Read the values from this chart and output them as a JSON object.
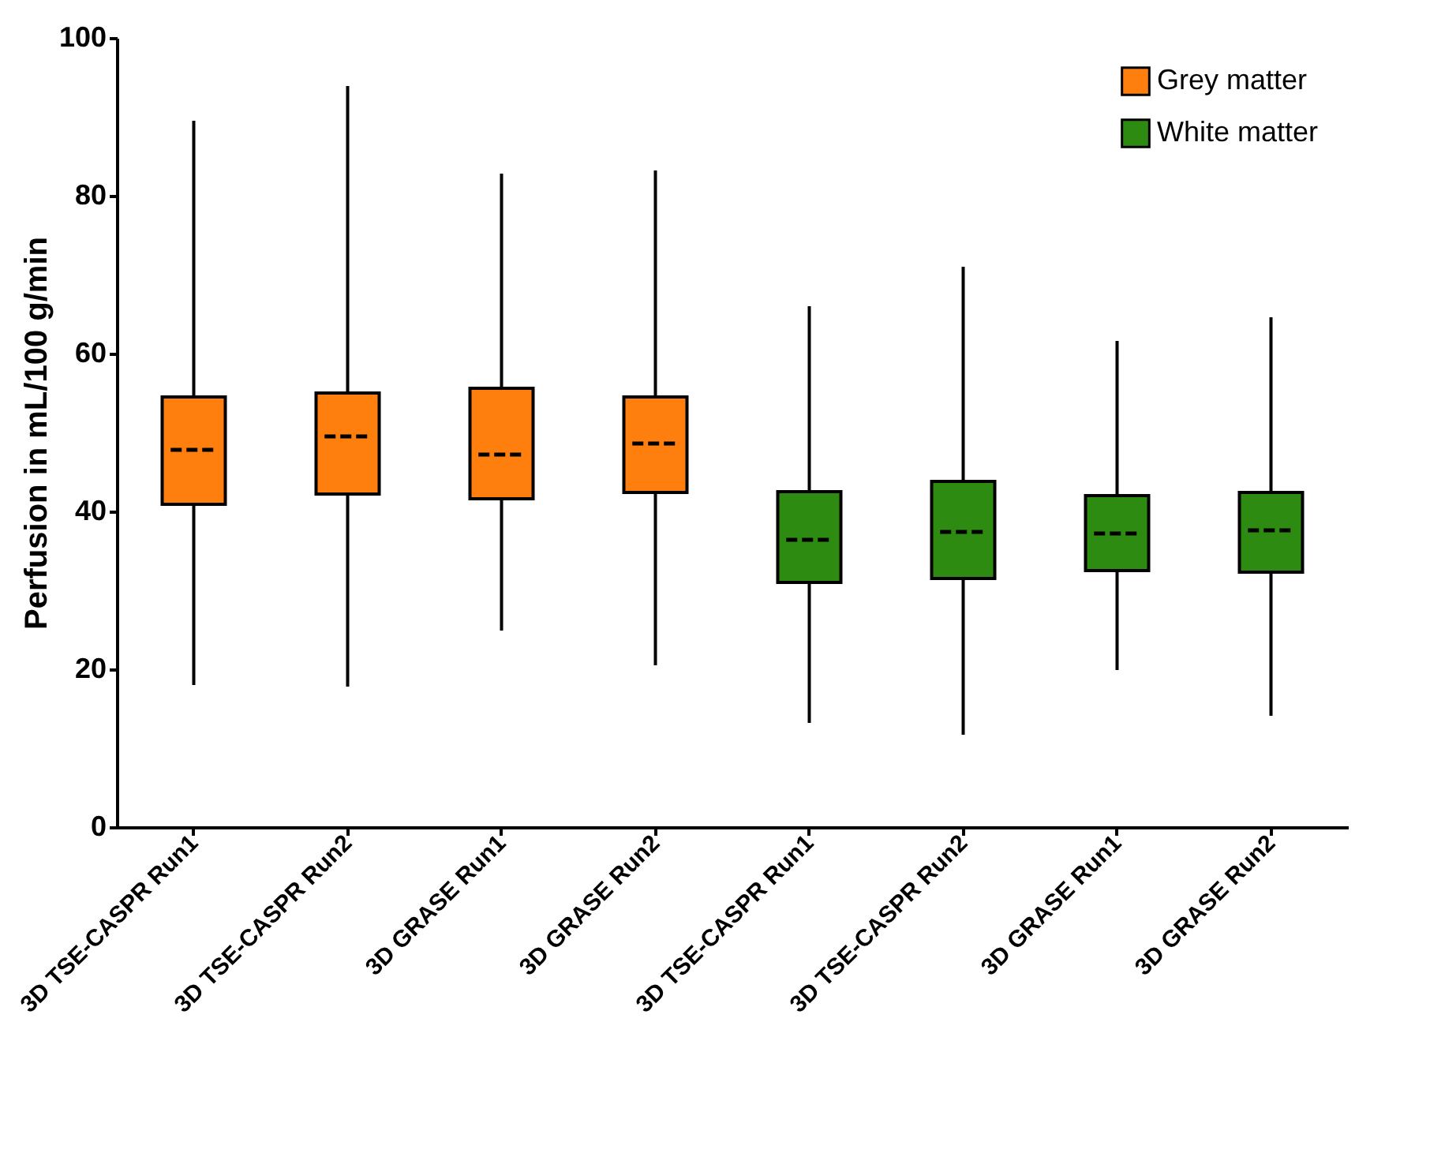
{
  "chart_data": {
    "type": "box",
    "ylabel": "Perfusion in mL/100 g/min",
    "categories": [
      "3D TSE-CASPR Run1",
      "3D TSE-CASPR Run2",
      "3D GRASE Run1",
      "3D GRASE Run2",
      "3D TSE-CASPR Run1",
      "3D TSE-CASPR Run2",
      "3D GRASE Run1",
      "3D GRASE Run2"
    ],
    "ylim": [
      0,
      100
    ],
    "yticks": [
      0,
      20,
      40,
      60,
      80,
      100
    ],
    "legend": "top right",
    "series": [
      {
        "name": "Grey matter",
        "color": "#ff7f0e",
        "boxes": [
          {
            "low": 18,
            "q1": 40.9,
            "median": 47.8,
            "q3": 54.5,
            "high": 89.5
          },
          {
            "low": 17.8,
            "q1": 42.2,
            "median": 49.5,
            "q3": 55,
            "high": 93.9
          },
          {
            "low": 24.9,
            "q1": 41.6,
            "median": 47.2,
            "q3": 55.6,
            "high": 82.8
          },
          {
            "low": 20.5,
            "q1": 42.4,
            "median": 48.6,
            "q3": 54.5,
            "high": 83.2
          },
          null,
          null,
          null,
          null
        ]
      },
      {
        "name": "White matter",
        "color": "#2e8b12",
        "boxes": [
          null,
          null,
          null,
          null,
          {
            "low": 13.2,
            "q1": 31,
            "median": 36.4,
            "q3": 42.5,
            "high": 66
          },
          {
            "low": 11.7,
            "q1": 31.5,
            "median": 37.4,
            "q3": 43.8,
            "high": 71
          },
          {
            "low": 19.9,
            "q1": 32.5,
            "median": 37.2,
            "q3": 42,
            "high": 61.6
          },
          {
            "low": 14.1,
            "q1": 32.3,
            "median": 37.6,
            "q3": 42.4,
            "high": 64.6
          }
        ]
      }
    ]
  }
}
